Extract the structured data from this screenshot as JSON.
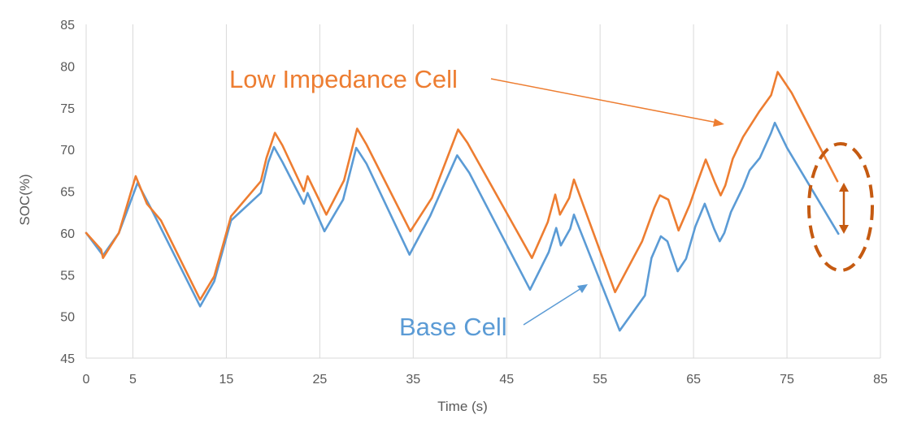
{
  "chart_data": {
    "type": "line",
    "title": "",
    "xlabel": "Time (s)",
    "ylabel": "SOC(%)",
    "xlim": [
      0,
      85
    ],
    "ylim": [
      45,
      85
    ],
    "x_ticks": [
      0,
      5,
      15,
      25,
      35,
      45,
      55,
      65,
      75,
      85
    ],
    "y_ticks": [
      45,
      50,
      55,
      60,
      65,
      70,
      75,
      80,
      85
    ],
    "grid": "vertical",
    "series": [
      {
        "name": "Low Impedance Cell",
        "color": "#ED7D31",
        "points": [
          [
            0,
            60
          ],
          [
            1.6,
            58
          ],
          [
            1.8,
            57
          ],
          [
            3.5,
            60
          ],
          [
            5.3,
            66.8
          ],
          [
            6.5,
            63.5
          ],
          [
            8,
            61.5
          ],
          [
            12.2,
            52
          ],
          [
            13.7,
            54.8
          ],
          [
            15.5,
            62
          ],
          [
            18.7,
            66.2
          ],
          [
            19.3,
            69
          ],
          [
            20.2,
            72
          ],
          [
            21,
            70.5
          ],
          [
            23.3,
            65
          ],
          [
            23.7,
            66.8
          ],
          [
            25.7,
            62.2
          ],
          [
            27.6,
            66.3
          ],
          [
            29,
            72.5
          ],
          [
            30,
            70.6
          ],
          [
            34.7,
            60.2
          ],
          [
            37,
            64.2
          ],
          [
            39.8,
            72.4
          ],
          [
            40.8,
            70.8
          ],
          [
            47.7,
            57
          ],
          [
            49.4,
            61.3
          ],
          [
            50.2,
            64.6
          ],
          [
            50.7,
            62.2
          ],
          [
            51.7,
            64.2
          ],
          [
            52.2,
            66.4
          ],
          [
            56.6,
            52.9
          ],
          [
            59.5,
            59
          ],
          [
            60.8,
            63
          ],
          [
            61.4,
            64.5
          ],
          [
            62.3,
            64
          ],
          [
            63.4,
            60.3
          ],
          [
            64.6,
            63.4
          ],
          [
            65.4,
            66
          ],
          [
            66.3,
            68.8
          ],
          [
            67.3,
            66
          ],
          [
            67.9,
            64.5
          ],
          [
            68.4,
            65.7
          ],
          [
            69.2,
            68.9
          ],
          [
            70.3,
            71.5
          ],
          [
            72,
            74.5
          ],
          [
            73.3,
            76.5
          ],
          [
            74,
            79.3
          ],
          [
            75.5,
            76.8
          ],
          [
            80.4,
            66.2
          ]
        ]
      },
      {
        "name": "Base Cell",
        "color": "#5B9BD5",
        "points": [
          [
            0,
            60
          ],
          [
            1.8,
            57.3
          ],
          [
            3.5,
            60
          ],
          [
            5,
            64.5
          ],
          [
            5.5,
            66
          ],
          [
            7,
            62.8
          ],
          [
            12.2,
            51.2
          ],
          [
            13.7,
            54.2
          ],
          [
            15.5,
            61.5
          ],
          [
            18.7,
            64.8
          ],
          [
            19.5,
            68.5
          ],
          [
            20.1,
            70.3
          ],
          [
            21,
            68.5
          ],
          [
            23.3,
            63.5
          ],
          [
            23.7,
            64.8
          ],
          [
            25.5,
            60.2
          ],
          [
            27.5,
            64
          ],
          [
            28.9,
            70.2
          ],
          [
            30,
            68.3
          ],
          [
            34.6,
            57.4
          ],
          [
            36.8,
            62
          ],
          [
            39.7,
            69.3
          ],
          [
            41,
            67.2
          ],
          [
            47.5,
            53.2
          ],
          [
            49.5,
            57.7
          ],
          [
            50.3,
            60.6
          ],
          [
            50.8,
            58.5
          ],
          [
            51.8,
            60.5
          ],
          [
            52.2,
            62.2
          ],
          [
            57.1,
            48.3
          ],
          [
            59.8,
            52.5
          ],
          [
            60.5,
            57
          ],
          [
            61.5,
            59.6
          ],
          [
            62.2,
            59
          ],
          [
            63.3,
            55.4
          ],
          [
            64.2,
            56.9
          ],
          [
            65.2,
            60.8
          ],
          [
            66.2,
            63.5
          ],
          [
            67.2,
            60.5
          ],
          [
            67.8,
            59
          ],
          [
            68.3,
            60
          ],
          [
            69,
            62.5
          ],
          [
            70.3,
            65.5
          ],
          [
            71,
            67.5
          ],
          [
            72.1,
            69
          ],
          [
            73.3,
            72
          ],
          [
            73.7,
            73.2
          ],
          [
            75,
            70.2
          ],
          [
            80.5,
            59.9
          ]
        ]
      }
    ],
    "annotations": [
      {
        "text": "Low Impedance Cell",
        "color": "#ED7D31"
      },
      {
        "text": "Base Cell",
        "color": "#5B9BD5"
      }
    ]
  }
}
